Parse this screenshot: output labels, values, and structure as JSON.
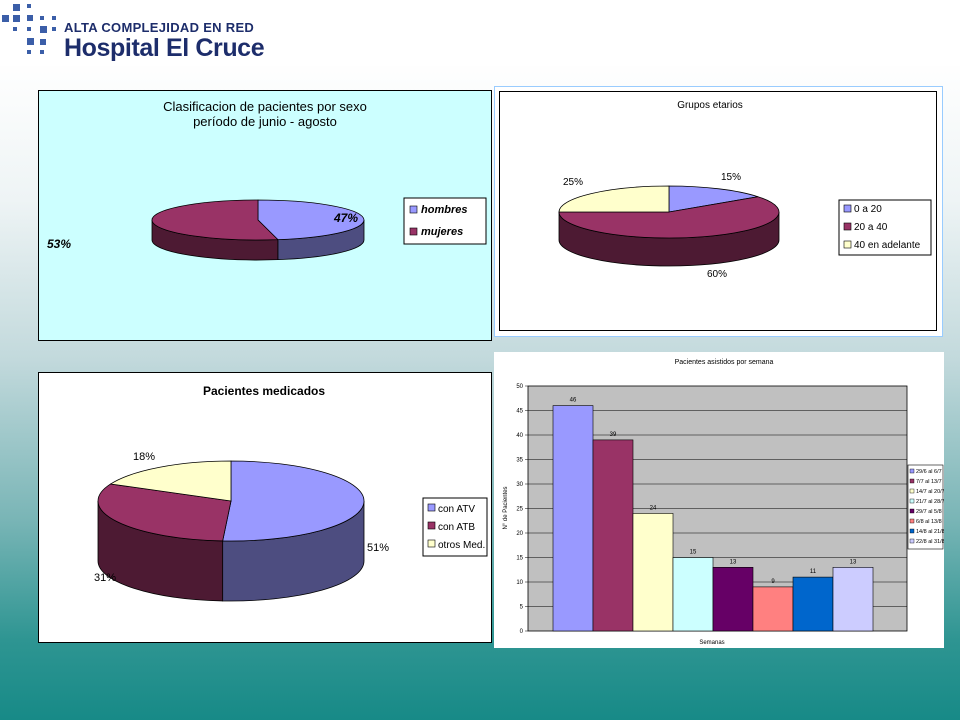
{
  "header": {
    "tagline": "ALTA COMPLEJIDAD EN RED",
    "hospital_name": "Hospital El Cruce"
  },
  "colors": {
    "logo_blue": "#1d2d6b",
    "logo_squares": "#3b5ea8",
    "panel_bg": "#ccffff",
    "bar_plot_bg": "#c0c0c0"
  },
  "chart_data": [
    {
      "type": "pie",
      "title_line1": "Clasificacion de pacientes por sexo",
      "title_line2": "período de junio - agosto",
      "categories": [
        "hombres",
        "mujeres"
      ],
      "values": [
        47,
        53
      ],
      "labels": [
        "47%",
        "53%"
      ],
      "colors": [
        "#9999ff",
        "#993366"
      ],
      "legend_position": "right"
    },
    {
      "type": "pie",
      "title": "Grupos etarios",
      "categories": [
        "0 a 20",
        "20 a 40",
        "40 en adelante"
      ],
      "values": [
        15,
        60,
        25
      ],
      "labels": [
        "15%",
        "60%",
        "25%"
      ],
      "colors": [
        "#9999ff",
        "#993366",
        "#ffffcc"
      ],
      "legend_position": "right"
    },
    {
      "type": "pie",
      "title": "Pacientes medicados",
      "categories": [
        "con ATV",
        "con ATB",
        "otros Med."
      ],
      "values": [
        51,
        31,
        18
      ],
      "labels": [
        "51%",
        "31%",
        "18%"
      ],
      "colors": [
        "#9999ff",
        "#993366",
        "#ffffcc"
      ],
      "legend_position": "right"
    },
    {
      "type": "bar",
      "title": "Pacientes asistidos por semana",
      "xlabel": "Semanas",
      "ylabel": "N° de Pacientes",
      "ylim": [
        0,
        50
      ],
      "yticks": [
        "0",
        "5",
        "10",
        "15",
        "20",
        "25",
        "30",
        "35",
        "40",
        "45",
        "50"
      ],
      "categories": [
        "29/6 al 6/7",
        "7/7 al 13/7",
        "14/7 al 20/7",
        "21/7 al 28/7",
        "29/7 al 5/8",
        "6/8 al 13/8",
        "14/8 al 21/8",
        "22/8 al 31/8"
      ],
      "values": [
        46,
        39,
        24,
        15,
        13,
        9,
        11,
        13
      ],
      "value_labels": [
        "46",
        "39",
        "24",
        "15",
        "13",
        "9",
        "11",
        "13"
      ],
      "colors": [
        "#9999ff",
        "#993366",
        "#ffffcc",
        "#ccffff",
        "#660066",
        "#ff8080",
        "#0066cc",
        "#ccccff"
      ],
      "grid": true,
      "legend_position": "right"
    }
  ]
}
